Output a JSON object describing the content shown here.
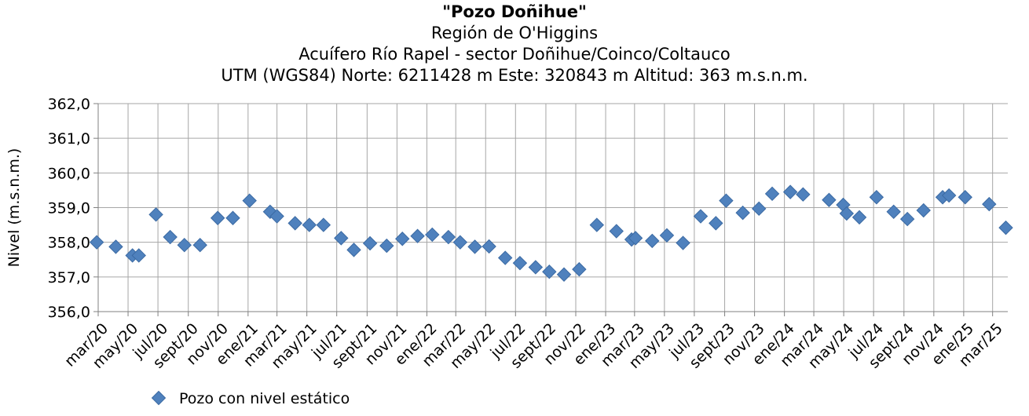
{
  "chart_data": {
    "type": "scatter",
    "title": "\"Pozo Doñihue\"",
    "subtitles": [
      "Región de O'Higgins",
      "Acuífero Río Rapel - sector Doñihue/Coinco/Coltauco",
      "UTM (WGS84) Norte: 6211428 m  Este: 320843 m   Altitud: 363 m.s.n.m."
    ],
    "xlabel": "",
    "ylabel": "Nivel (m.s.n.m.)",
    "ylim": [
      356.0,
      362.0
    ],
    "y_ticks": [
      "356,0",
      "357,0",
      "358,0",
      "359,0",
      "360,0",
      "361,0",
      "362,0"
    ],
    "x_range": [
      "2020-03-01",
      "2025-04-01"
    ],
    "x_tick_labels": [
      "mar/20",
      "may/20",
      "jul/20",
      "sept/20",
      "nov/20",
      "ene/21",
      "mar/21",
      "may/21",
      "jul/21",
      "sept/21",
      "nov/21",
      "ene/22",
      "mar/22",
      "may/22",
      "jul/22",
      "sept/22",
      "nov/22",
      "ene/23",
      "mar/23",
      "may/23",
      "jul/23",
      "sept/23",
      "nov/23",
      "ene/24",
      "mar/24",
      "may/24",
      "jul/24",
      "sept/24",
      "nov/24",
      "ene/25",
      "mar/25"
    ],
    "grid": true,
    "legend_position": "bottom-left",
    "series": [
      {
        "name": "Pozo con nivel estático",
        "color": "#4f81bd",
        "marker": "diamond",
        "points": [
          {
            "x": "2020-02-27",
            "y": 358.0
          },
          {
            "x": "2020-04-06",
            "y": 357.87
          },
          {
            "x": "2020-05-10",
            "y": 357.62
          },
          {
            "x": "2020-05-23",
            "y": 357.62
          },
          {
            "x": "2020-06-27",
            "y": 358.8
          },
          {
            "x": "2020-07-26",
            "y": 358.15
          },
          {
            "x": "2020-08-24",
            "y": 357.92
          },
          {
            "x": "2020-09-25",
            "y": 357.92
          },
          {
            "x": "2020-10-31",
            "y": 358.7
          },
          {
            "x": "2020-12-01",
            "y": 358.7
          },
          {
            "x": "2021-01-04",
            "y": 359.2
          },
          {
            "x": "2021-02-15",
            "y": 358.88
          },
          {
            "x": "2021-03-01",
            "y": 358.75
          },
          {
            "x": "2021-04-07",
            "y": 358.55
          },
          {
            "x": "2021-05-06",
            "y": 358.5
          },
          {
            "x": "2021-06-04",
            "y": 358.5
          },
          {
            "x": "2021-07-10",
            "y": 358.12
          },
          {
            "x": "2021-08-05",
            "y": 357.78
          },
          {
            "x": "2021-09-07",
            "y": 357.97
          },
          {
            "x": "2021-10-11",
            "y": 357.9
          },
          {
            "x": "2021-11-12",
            "y": 358.1
          },
          {
            "x": "2021-12-13",
            "y": 358.18
          },
          {
            "x": "2022-01-12",
            "y": 358.22
          },
          {
            "x": "2022-02-14",
            "y": 358.15
          },
          {
            "x": "2022-03-10",
            "y": 358.0
          },
          {
            "x": "2022-04-09",
            "y": 357.87
          },
          {
            "x": "2022-05-08",
            "y": 357.88
          },
          {
            "x": "2022-06-10",
            "y": 357.55
          },
          {
            "x": "2022-07-10",
            "y": 357.4
          },
          {
            "x": "2022-08-11",
            "y": 357.28
          },
          {
            "x": "2022-09-08",
            "y": 357.15
          },
          {
            "x": "2022-10-08",
            "y": 357.07
          },
          {
            "x": "2022-11-08",
            "y": 357.22
          },
          {
            "x": "2022-12-14",
            "y": 358.5
          },
          {
            "x": "2023-01-23",
            "y": 358.32
          },
          {
            "x": "2023-02-23",
            "y": 358.08
          },
          {
            "x": "2023-03-03",
            "y": 358.12
          },
          {
            "x": "2023-04-06",
            "y": 358.04
          },
          {
            "x": "2023-05-06",
            "y": 358.2
          },
          {
            "x": "2023-06-08",
            "y": 357.98
          },
          {
            "x": "2023-07-14",
            "y": 358.75
          },
          {
            "x": "2023-08-14",
            "y": 358.55
          },
          {
            "x": "2023-09-04",
            "y": 359.2
          },
          {
            "x": "2023-10-08",
            "y": 358.85
          },
          {
            "x": "2023-11-10",
            "y": 358.97
          },
          {
            "x": "2023-12-07",
            "y": 359.4
          },
          {
            "x": "2024-01-13",
            "y": 359.45
          },
          {
            "x": "2024-02-08",
            "y": 359.38
          },
          {
            "x": "2024-04-01",
            "y": 359.22
          },
          {
            "x": "2024-04-30",
            "y": 359.08
          },
          {
            "x": "2024-05-07",
            "y": 358.83
          },
          {
            "x": "2024-06-02",
            "y": 358.72
          },
          {
            "x": "2024-07-07",
            "y": 359.3
          },
          {
            "x": "2024-08-11",
            "y": 358.88
          },
          {
            "x": "2024-09-08",
            "y": 358.67
          },
          {
            "x": "2024-10-11",
            "y": 358.92
          },
          {
            "x": "2024-11-19",
            "y": 359.3
          },
          {
            "x": "2024-12-02",
            "y": 359.35
          },
          {
            "x": "2025-01-04",
            "y": 359.3
          },
          {
            "x": "2025-02-22",
            "y": 359.1
          },
          {
            "x": "2025-03-28",
            "y": 358.42
          }
        ]
      }
    ]
  }
}
